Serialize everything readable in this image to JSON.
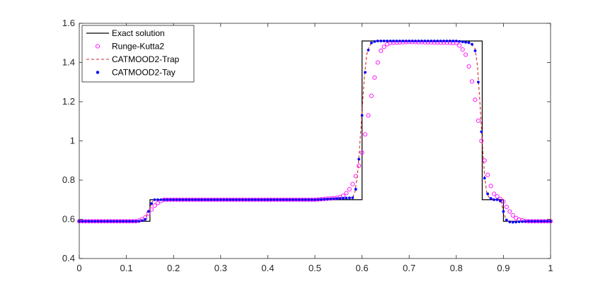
{
  "chart_data": {
    "type": "line",
    "title": "",
    "xlabel": "",
    "ylabel": "",
    "xlim": [
      0,
      1
    ],
    "ylim": [
      0.4,
      1.6
    ],
    "x_ticks": [
      "0",
      "0.1",
      "0.2",
      "0.3",
      "0.4",
      "0.5",
      "0.6",
      "0.7",
      "0.8",
      "0.9",
      "1"
    ],
    "y_ticks": [
      "0.4",
      "0.6",
      "0.8",
      "1",
      "1.2",
      "1.4",
      "1.6"
    ],
    "grid": false,
    "legend_position": "top-left",
    "series": [
      {
        "name": "Exact solution",
        "style": "solid-line",
        "color": "#000000",
        "x": [
          0,
          0.15,
          0.15,
          0.6,
          0.6,
          0.855,
          0.855,
          0.9,
          0.9,
          1
        ],
        "y": [
          0.59,
          0.59,
          0.7,
          0.7,
          1.51,
          1.51,
          0.7,
          0.7,
          0.59,
          0.59
        ]
      },
      {
        "name": "Runge-Kutta2",
        "style": "circle-markers",
        "color": "#ff00ff",
        "x": [
          0.0,
          0.1,
          0.12,
          0.13,
          0.14,
          0.15,
          0.16,
          0.17,
          0.18,
          0.2,
          0.5,
          0.55,
          0.56,
          0.57,
          0.58,
          0.59,
          0.6,
          0.61,
          0.62,
          0.63,
          0.64,
          0.65,
          0.66,
          0.7,
          0.8,
          0.81,
          0.82,
          0.83,
          0.84,
          0.85,
          0.86,
          0.87,
          0.88,
          0.89,
          0.9,
          0.91,
          0.92,
          0.93,
          0.95,
          1.0
        ],
        "y": [
          0.59,
          0.59,
          0.59,
          0.595,
          0.61,
          0.64,
          0.67,
          0.69,
          0.7,
          0.7,
          0.7,
          0.71,
          0.72,
          0.74,
          0.78,
          0.84,
          0.94,
          1.08,
          1.23,
          1.37,
          1.46,
          1.49,
          1.5,
          1.505,
          1.5,
          1.48,
          1.44,
          1.35,
          1.21,
          1.05,
          0.9,
          0.79,
          0.73,
          0.71,
          0.69,
          0.65,
          0.62,
          0.6,
          0.59,
          0.59
        ]
      },
      {
        "name": "CATMOOD2-Trap",
        "style": "dashed-line",
        "color": "#d62728",
        "x": [
          0.0,
          0.135,
          0.14,
          0.145,
          0.15,
          0.155,
          0.16,
          0.17,
          0.2,
          0.5,
          0.58,
          0.585,
          0.59,
          0.595,
          0.6,
          0.605,
          0.61,
          0.615,
          0.62,
          0.63,
          0.65,
          0.8,
          0.83,
          0.84,
          0.845,
          0.85,
          0.855,
          0.86,
          0.865,
          0.87,
          0.88,
          0.89,
          0.895,
          0.9,
          0.905,
          0.91,
          0.92,
          0.95,
          1.0
        ],
        "y": [
          0.59,
          0.59,
          0.6,
          0.63,
          0.66,
          0.69,
          0.7,
          0.7,
          0.7,
          0.7,
          0.71,
          0.74,
          0.82,
          0.97,
          1.15,
          1.33,
          1.44,
          1.48,
          1.5,
          1.51,
          1.51,
          1.51,
          1.5,
          1.47,
          1.38,
          1.2,
          1.0,
          0.82,
          0.73,
          0.71,
          0.7,
          0.7,
          0.69,
          0.64,
          0.6,
          0.59,
          0.59,
          0.59,
          0.59
        ]
      },
      {
        "name": "CATMOOD2-Tay",
        "style": "dot-markers",
        "color": "#0000ff",
        "x": [
          0.0,
          0.1,
          0.13,
          0.14,
          0.145,
          0.15,
          0.155,
          0.16,
          0.17,
          0.2,
          0.5,
          0.58,
          0.585,
          0.59,
          0.595,
          0.6,
          0.605,
          0.61,
          0.615,
          0.62,
          0.63,
          0.65,
          0.8,
          0.83,
          0.835,
          0.84,
          0.845,
          0.85,
          0.855,
          0.86,
          0.865,
          0.87,
          0.88,
          0.89,
          0.895,
          0.9,
          0.905,
          0.91,
          0.915,
          0.92,
          0.95,
          1.0
        ],
        "y": [
          0.59,
          0.59,
          0.59,
          0.6,
          0.63,
          0.66,
          0.69,
          0.7,
          0.7,
          0.7,
          0.7,
          0.71,
          0.73,
          0.8,
          0.96,
          1.13,
          1.31,
          1.43,
          1.48,
          1.5,
          1.51,
          1.51,
          1.51,
          1.5,
          1.49,
          1.46,
          1.36,
          1.18,
          0.98,
          0.81,
          0.74,
          0.71,
          0.7,
          0.7,
          0.69,
          0.64,
          0.6,
          0.59,
          0.585,
          0.585,
          0.59,
          0.59
        ]
      }
    ]
  }
}
